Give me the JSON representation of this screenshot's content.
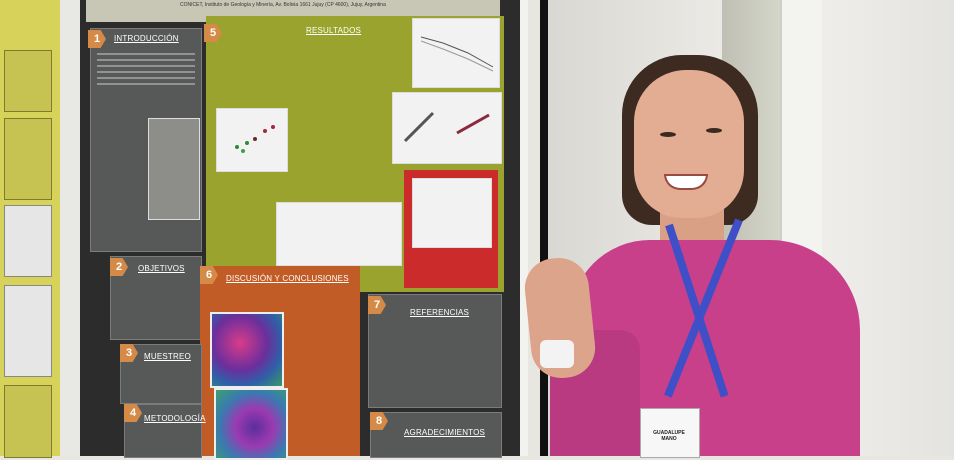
{
  "poster": {
    "banner_text": "CONICET, Instituto de Geología y Minería, Av. Bolivia 1661 Jujuy (CP 4600), Jujuy, Argentina",
    "sections": [
      {
        "number": "1",
        "title": "INTRODUCCIÓN"
      },
      {
        "number": "5",
        "title": "RESULTADOS"
      },
      {
        "number": "2",
        "title": "OBJETIVOS"
      },
      {
        "number": "6",
        "title": "DISCUSIÓN Y CONCLUSIONES"
      },
      {
        "number": "3",
        "title": "MUESTREO"
      },
      {
        "number": "7",
        "title": "REFERENCIAS"
      },
      {
        "number": "4",
        "title": "METODOLOGÍA"
      },
      {
        "number": "8",
        "title": "AGRADECIMIENTOS"
      }
    ]
  },
  "badge": {
    "text": "GUADALUPE MANO"
  },
  "colors": {
    "poster_bg": "#2c2c2c",
    "box_gray": "#575959",
    "box_olive": "#9aa32e",
    "box_orange": "#c25c27",
    "box_red": "#cc2b2b",
    "accent_num": "#d58a48",
    "sweater": "#c83f8a",
    "lanyard": "#3f4fc8"
  }
}
